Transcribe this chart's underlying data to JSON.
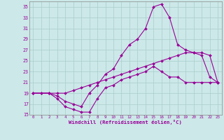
{
  "xlabel": "Windchill (Refroidissement éolien,°C)",
  "bg_color": "#cce8e8",
  "grid_color": "#aacccc",
  "line_color": "#990099",
  "xlim": [
    -0.5,
    23.5
  ],
  "ylim": [
    15,
    36
  ],
  "xticks": [
    0,
    1,
    2,
    3,
    4,
    5,
    6,
    7,
    8,
    9,
    10,
    11,
    12,
    13,
    14,
    15,
    16,
    17,
    18,
    19,
    20,
    21,
    22,
    23
  ],
  "yticks": [
    15,
    17,
    19,
    21,
    23,
    25,
    27,
    29,
    31,
    33,
    35
  ],
  "line1_x": [
    0,
    1,
    2,
    3,
    4,
    5,
    6,
    7,
    8,
    9,
    10,
    11,
    12,
    13,
    14,
    15,
    16,
    17,
    18,
    19,
    20,
    21,
    22,
    23
  ],
  "line1_y": [
    19,
    19,
    19,
    18,
    16.5,
    16,
    15.5,
    15.5,
    18,
    20,
    20.5,
    21.5,
    22,
    22.5,
    23,
    24,
    23,
    22,
    22,
    21,
    21,
    21,
    21,
    21
  ],
  "line2_x": [
    0,
    2,
    3,
    4,
    5,
    6,
    7,
    8,
    9,
    10,
    11,
    12,
    13,
    14,
    15,
    16,
    17,
    18,
    19,
    20,
    21,
    22,
    23
  ],
  "line2_y": [
    19,
    19,
    18.5,
    17.5,
    17,
    16.5,
    19,
    20.5,
    22.5,
    23.5,
    26,
    28,
    29,
    31,
    35,
    35.5,
    33,
    28,
    27,
    26.5,
    26,
    22,
    21
  ],
  "line3_x": [
    0,
    1,
    2,
    3,
    4,
    5,
    6,
    7,
    8,
    9,
    10,
    11,
    12,
    13,
    14,
    15,
    16,
    17,
    18,
    19,
    20,
    21,
    22,
    23
  ],
  "line3_y": [
    19,
    19,
    19,
    19,
    19,
    19.5,
    20,
    20.5,
    21,
    21.5,
    22,
    22.5,
    23,
    23.5,
    24,
    24.5,
    25,
    25.5,
    26,
    26.5,
    26.5,
    26.5,
    26,
    21
  ]
}
